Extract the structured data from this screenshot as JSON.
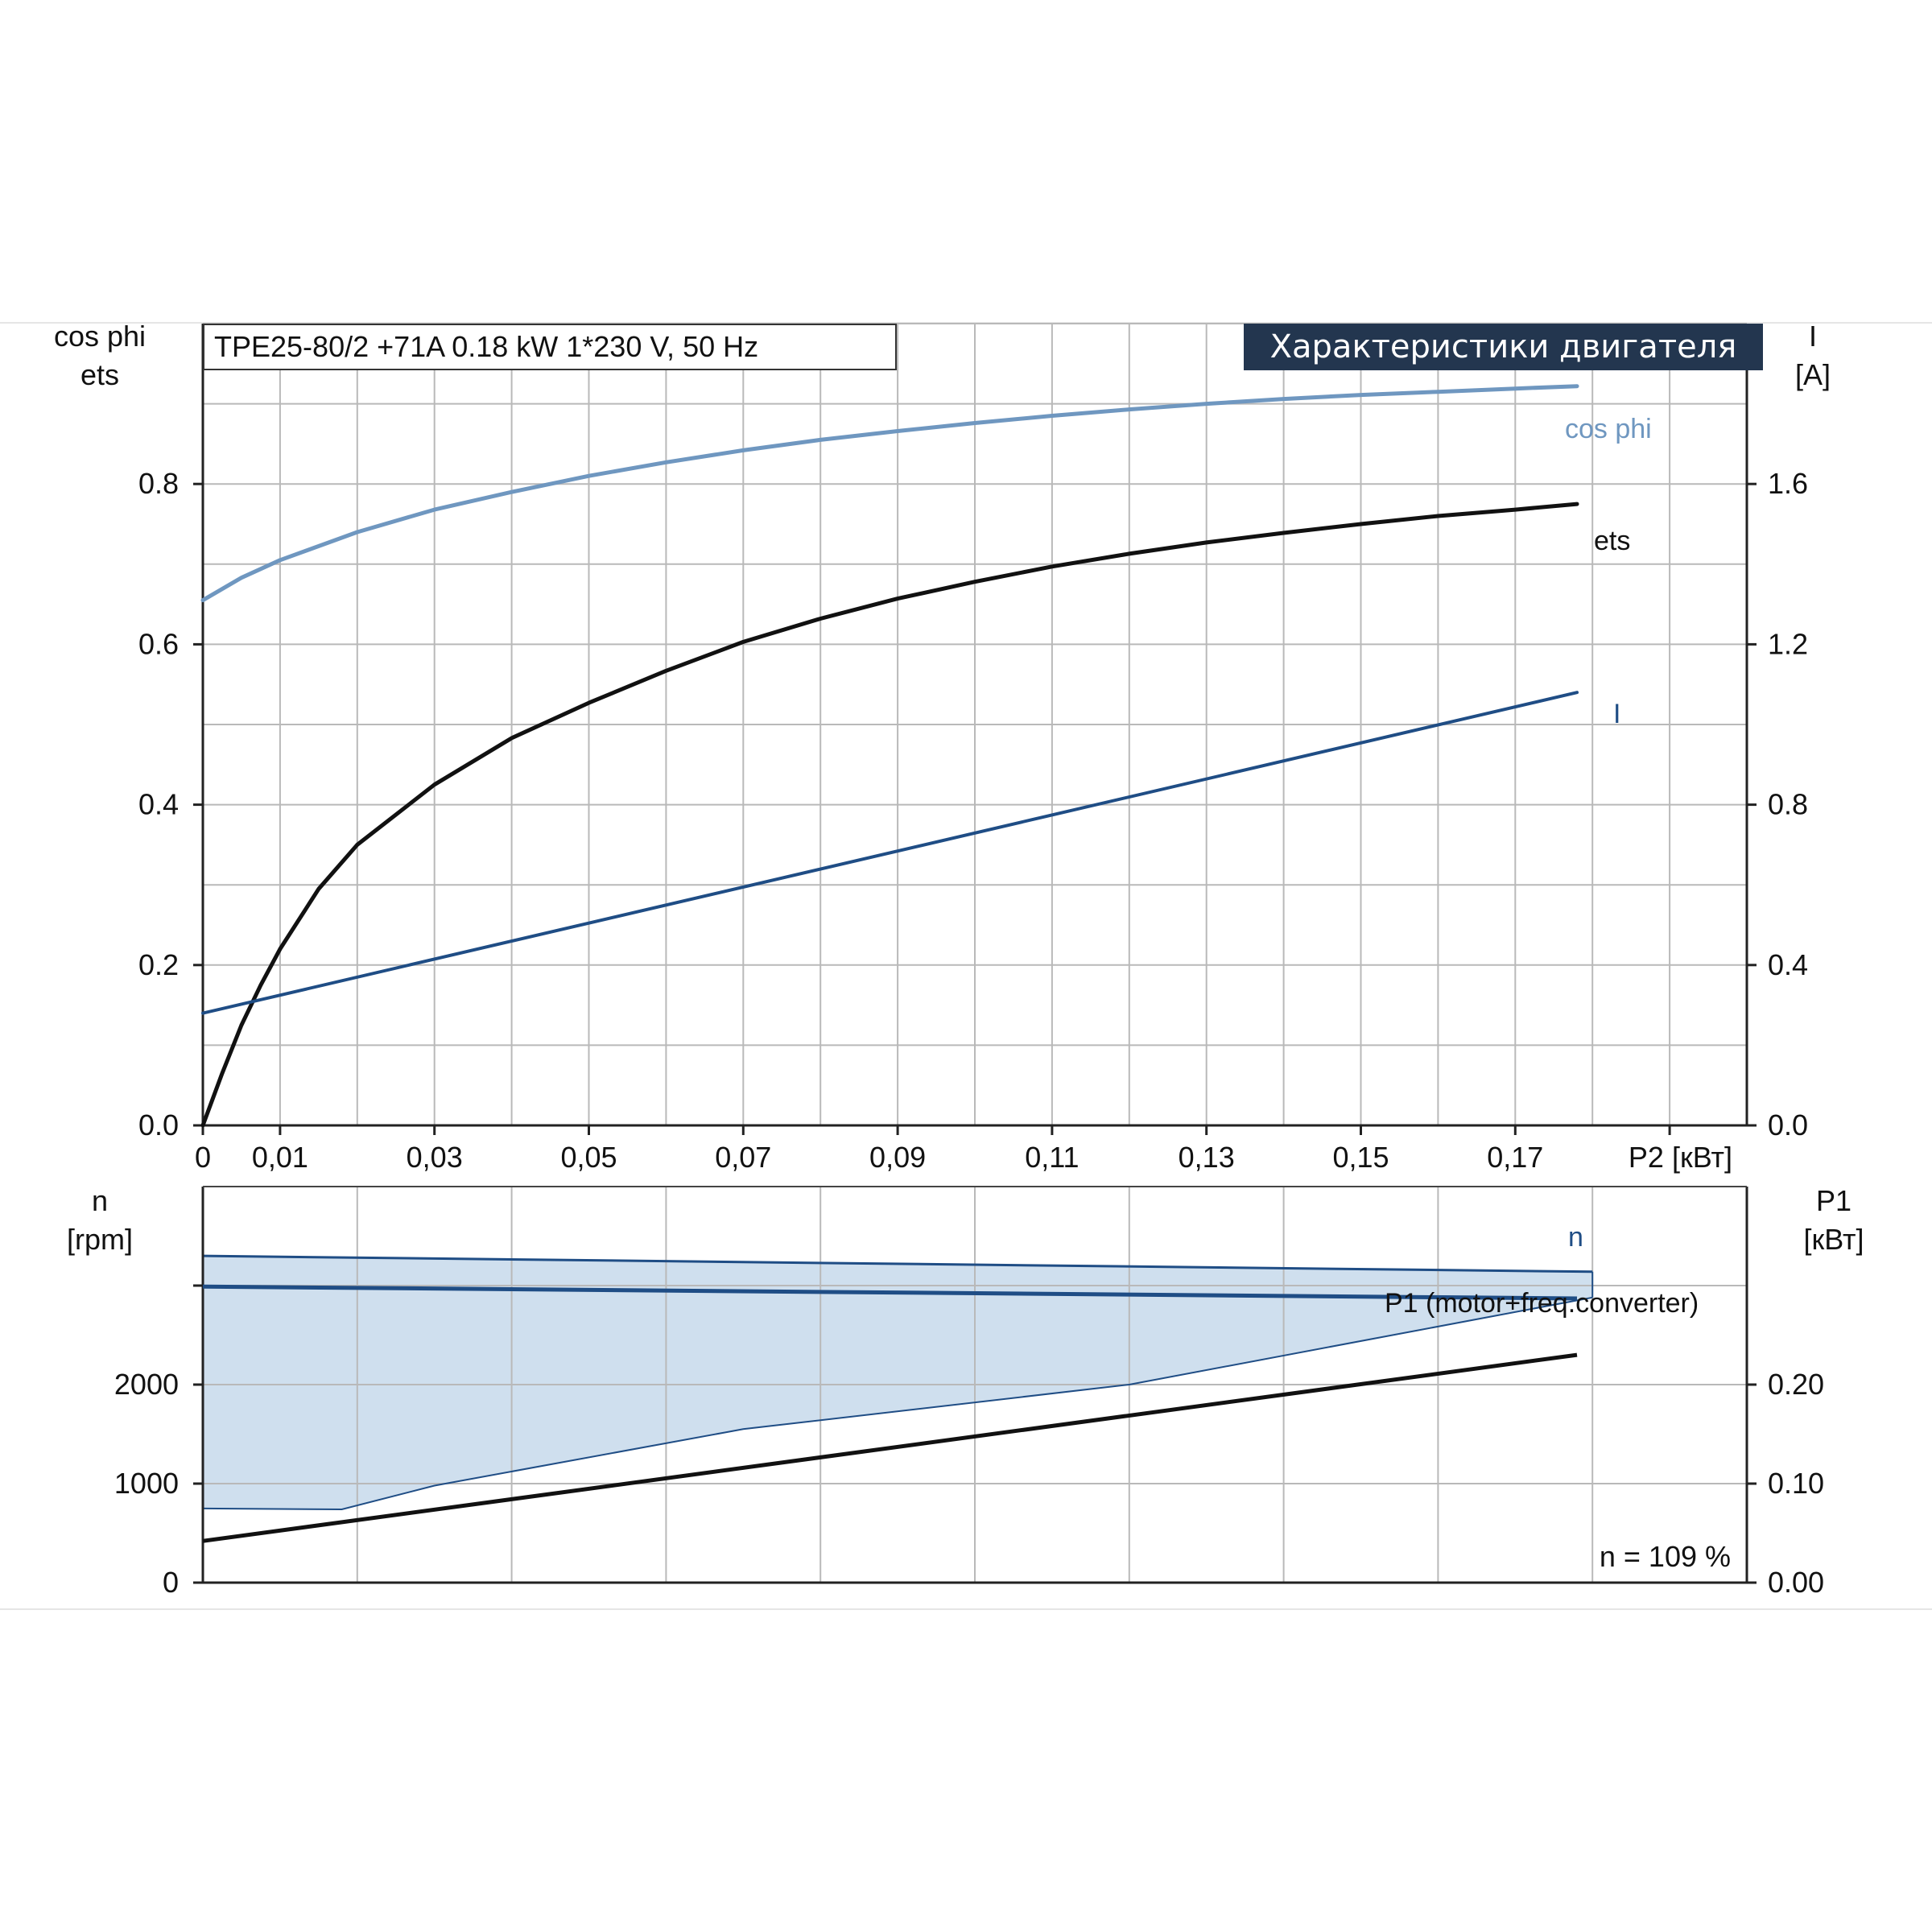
{
  "header": {
    "model_label": "TPE25-80/2 +71A   0.18 kW   1*230 V, 50 Hz",
    "heading": "Характеристики двигателя"
  },
  "footer": {
    "speed_note": "n = 109 %"
  },
  "colors": {
    "cos_phi": "#6f97c0",
    "ets": "#111111",
    "current": "#1f4d85",
    "speed": "#1f4d85",
    "speed_band_fill": "#cfdfee",
    "p1": "#111111",
    "grid": "#b9b9b9",
    "heading_bg": "#23364f"
  },
  "chart_data": [
    {
      "type": "line",
      "id": "motor-characteristics",
      "title": "Характеристики двигателя",
      "xlabel": "P2 [кВт]",
      "x_ticks": [
        0,
        0.01,
        0.03,
        0.05,
        0.07,
        0.09,
        0.11,
        0.13,
        0.15,
        0.17
      ],
      "x_tick_labels": [
        "0",
        "0,01",
        "0,03",
        "0,05",
        "0,07",
        "0,09",
        "0,11",
        "0,13",
        "0,15",
        "0,17"
      ],
      "xlim": [
        0,
        0.2
      ],
      "y_left": {
        "label_lines": [
          "cos phi",
          "ets"
        ],
        "ticks": [
          "0.0",
          "0.2",
          "0.4",
          "0.6",
          "0.8"
        ],
        "ylim": [
          0,
          1.0
        ]
      },
      "y_right": {
        "label_lines": [
          "I",
          "[A]"
        ],
        "ticks": [
          "0.0",
          "0.4",
          "0.8",
          "1.2",
          "1.6"
        ],
        "ylim": [
          0,
          2.0
        ]
      },
      "grid": true,
      "series": [
        {
          "name": "cos phi",
          "axis": "left",
          "x": [
            0,
            0.005,
            0.01,
            0.02,
            0.03,
            0.04,
            0.05,
            0.06,
            0.07,
            0.08,
            0.09,
            0.1,
            0.11,
            0.12,
            0.13,
            0.14,
            0.15,
            0.16,
            0.17,
            0.178
          ],
          "y": [
            0.655,
            0.683,
            0.705,
            0.74,
            0.768,
            0.79,
            0.81,
            0.827,
            0.842,
            0.855,
            0.866,
            0.876,
            0.885,
            0.893,
            0.9,
            0.906,
            0.911,
            0.915,
            0.919,
            0.922
          ]
        },
        {
          "name": "ets",
          "axis": "left",
          "x": [
            0,
            0.0025,
            0.005,
            0.0075,
            0.01,
            0.015,
            0.02,
            0.03,
            0.04,
            0.05,
            0.06,
            0.07,
            0.08,
            0.09,
            0.1,
            0.11,
            0.12,
            0.13,
            0.14,
            0.15,
            0.16,
            0.17,
            0.178
          ],
          "y": [
            0,
            0.065,
            0.125,
            0.175,
            0.22,
            0.295,
            0.35,
            0.425,
            0.483,
            0.527,
            0.567,
            0.603,
            0.632,
            0.657,
            0.678,
            0.697,
            0.713,
            0.727,
            0.739,
            0.75,
            0.76,
            0.768,
            0.775
          ]
        },
        {
          "name": "I",
          "axis": "right",
          "x": [
            0,
            0.178
          ],
          "y": [
            0.28,
            1.08
          ]
        }
      ]
    },
    {
      "type": "area",
      "id": "speed-power",
      "xlim": [
        0,
        0.2
      ],
      "y_left": {
        "label_lines": [
          "n",
          "[rpm]"
        ],
        "ticks": [
          "0",
          "1000",
          "2000"
        ],
        "ylim": [
          0,
          4000
        ]
      },
      "y_right": {
        "label_lines": [
          "P1",
          "[кВт]"
        ],
        "ticks": [
          "0.00",
          "0.10",
          "0.20"
        ],
        "ylim": [
          0,
          0.4
        ]
      },
      "grid": true,
      "series": [
        {
          "name": "n",
          "axis": "left",
          "x": [
            0,
            0.178
          ],
          "y": [
            2990,
            2870
          ]
        },
        {
          "name": "P1 (motor+freq.converter)",
          "axis": "right",
          "x": [
            0,
            0.178
          ],
          "y": [
            0.042,
            0.23
          ]
        }
      ],
      "speed_band": {
        "x_upper": [
          0,
          0.18
        ],
        "y_upper": [
          3300,
          3140
        ],
        "x_lower": [
          0,
          0.018,
          0.03,
          0.07,
          0.12,
          0.18
        ],
        "y_lower": [
          750,
          740,
          980,
          1550,
          2000,
          2880
        ]
      }
    }
  ]
}
